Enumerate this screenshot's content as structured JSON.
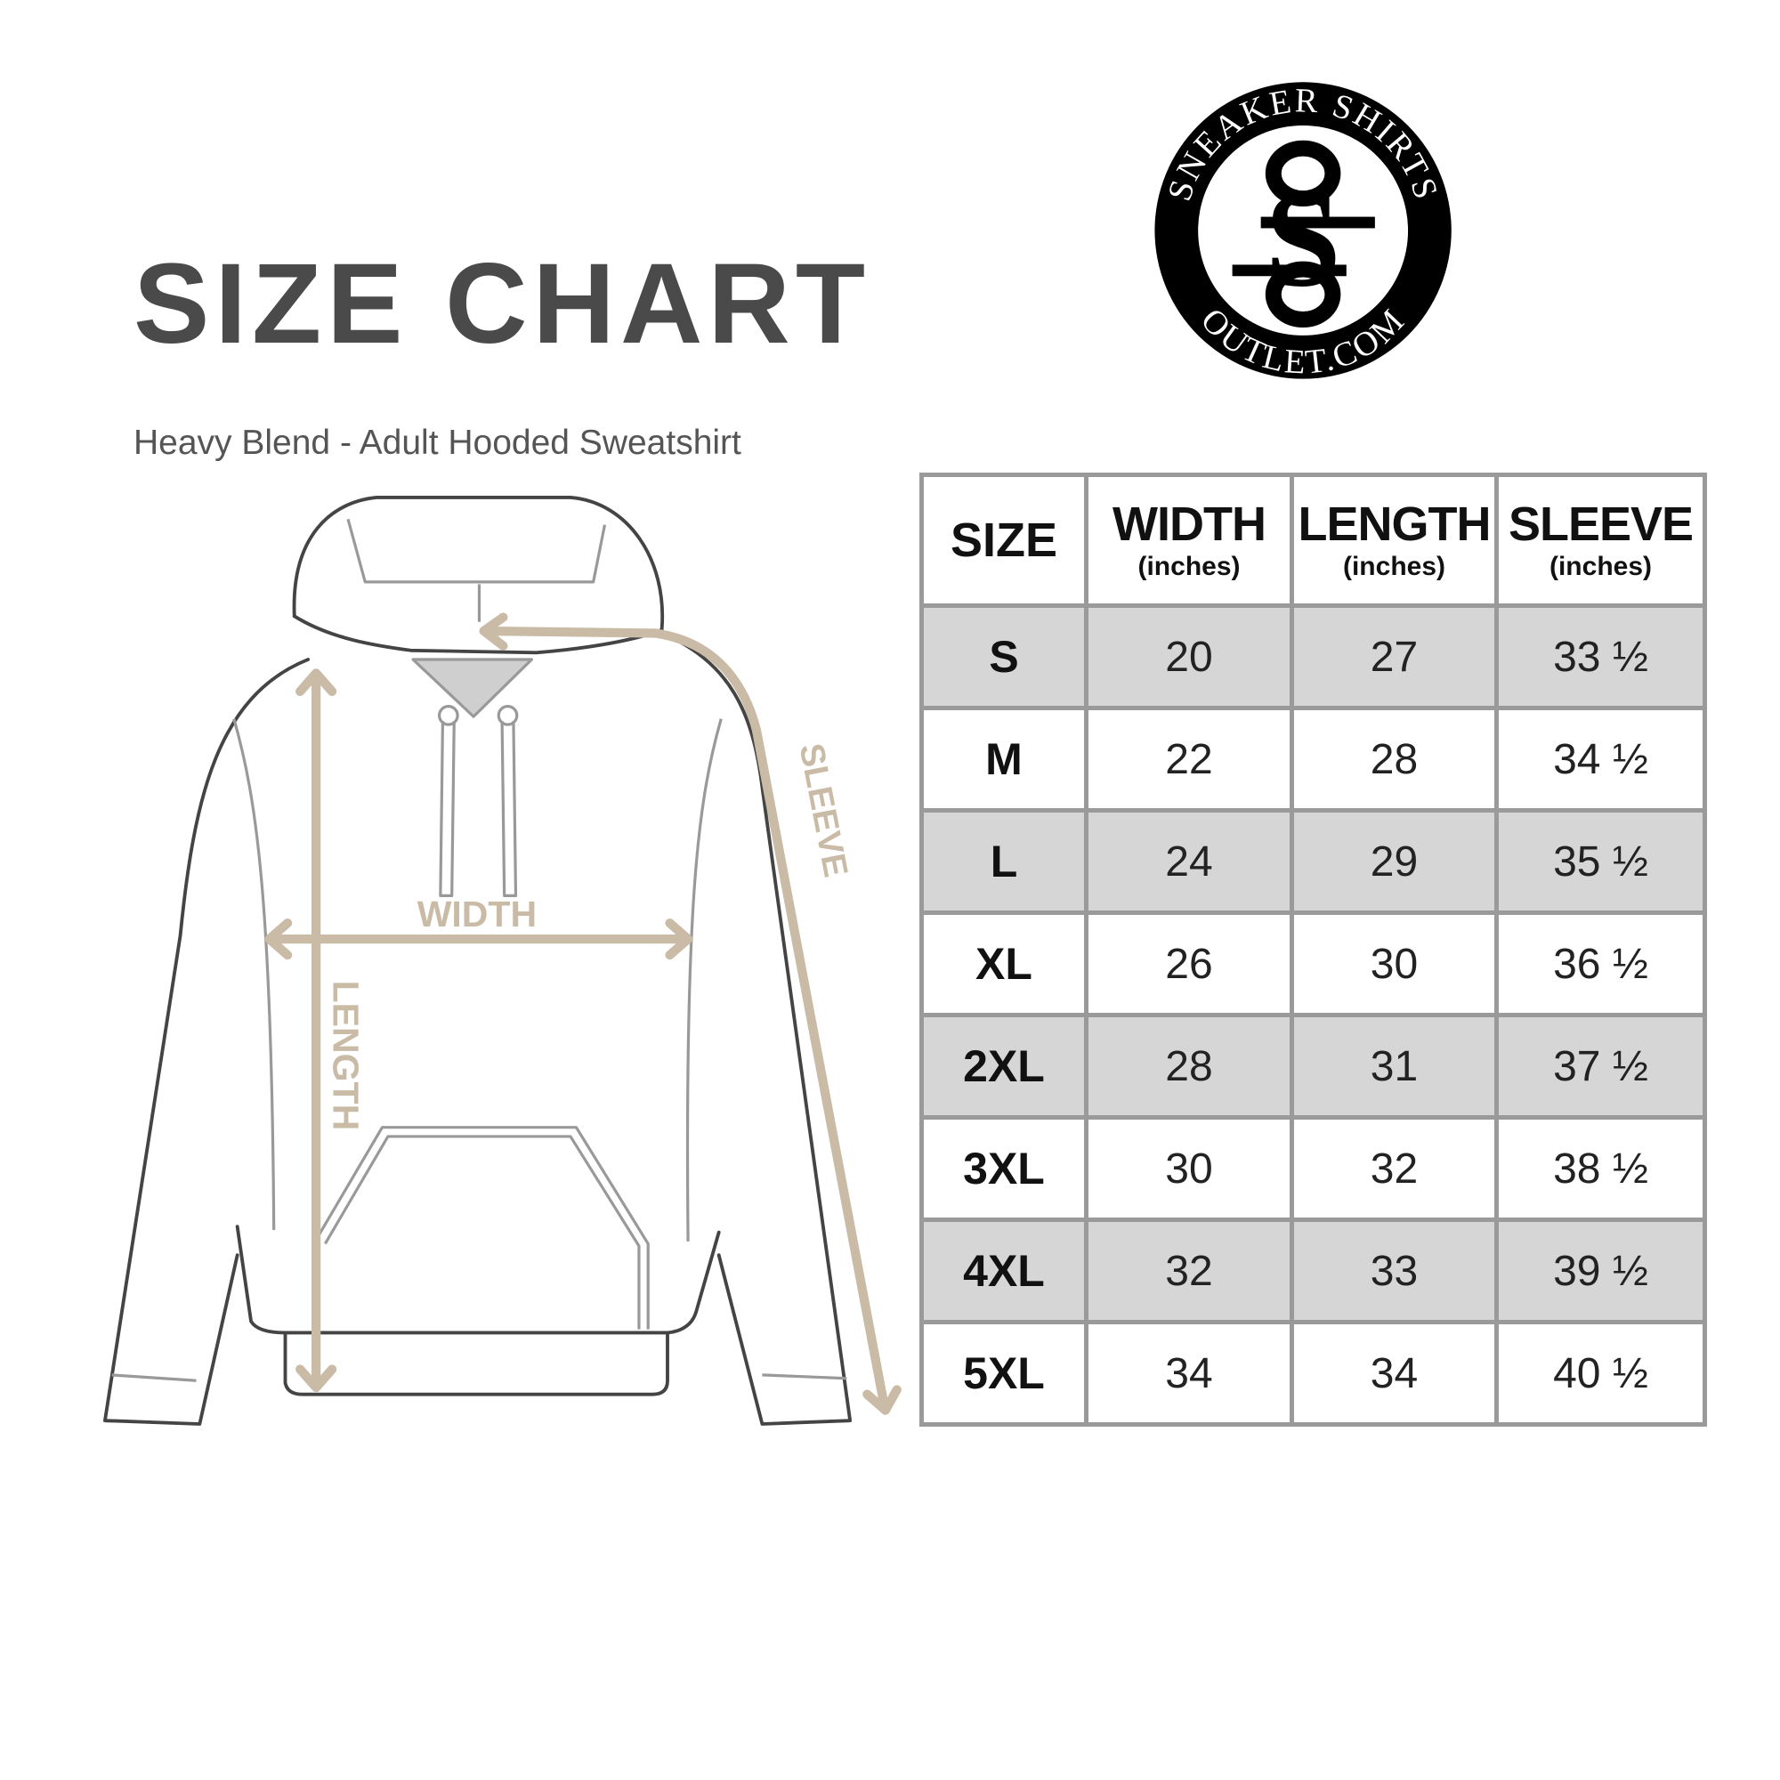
{
  "header": {
    "title": "SIZE CHART",
    "subtitle": "Heavy Blend - Adult Hooded Sweatshirt"
  },
  "logo": {
    "top_text": "SNEAKER SHIRTS",
    "bottom_text": "OUTLET.COM",
    "monogram": "SS"
  },
  "diagram": {
    "labels": {
      "width": "WIDTH",
      "length": "LENGTH",
      "sleeve": "SLEEVE"
    },
    "colors": {
      "arrow": "#c9bba6",
      "outline": "#444444",
      "inner": "#999999"
    }
  },
  "table": {
    "headers": [
      {
        "main": "SIZE",
        "unit": ""
      },
      {
        "main": "WIDTH",
        "unit": "(inches)"
      },
      {
        "main": "LENGTH",
        "unit": "(inches)"
      },
      {
        "main": "SLEEVE",
        "unit": "(inches)"
      }
    ],
    "rows": [
      {
        "size": "S",
        "width": "20",
        "length": "27",
        "sleeve": "33 ½"
      },
      {
        "size": "M",
        "width": "22",
        "length": "28",
        "sleeve": "34 ½"
      },
      {
        "size": "L",
        "width": "24",
        "length": "29",
        "sleeve": "35 ½"
      },
      {
        "size": "XL",
        "width": "26",
        "length": "30",
        "sleeve": "36 ½"
      },
      {
        "size": "2XL",
        "width": "28",
        "length": "31",
        "sleeve": "37 ½"
      },
      {
        "size": "3XL",
        "width": "30",
        "length": "32",
        "sleeve": "38 ½"
      },
      {
        "size": "4XL",
        "width": "32",
        "length": "33",
        "sleeve": "39 ½"
      },
      {
        "size": "5XL",
        "width": "34",
        "length": "34",
        "sleeve": "40 ½"
      }
    ],
    "colors": {
      "border": "#9a9a9a",
      "shade": "#d6d6d6"
    }
  }
}
